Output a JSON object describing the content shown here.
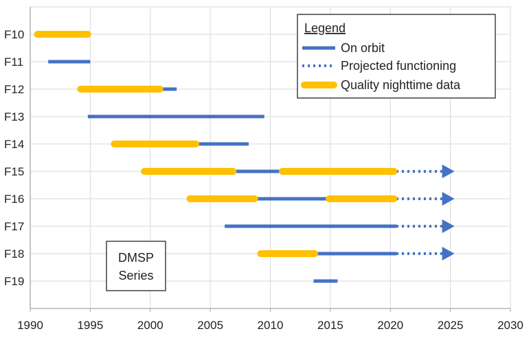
{
  "chart_data": {
    "type": "timeline",
    "title": "",
    "xlabel": "",
    "ylabel": "",
    "xlim": [
      1990,
      2030
    ],
    "x_ticks": [
      1990,
      1995,
      2000,
      2005,
      2010,
      2015,
      2020,
      2025,
      2030
    ],
    "categories": [
      "F10",
      "F11",
      "F12",
      "F13",
      "F14",
      "F15",
      "F16",
      "F17",
      "F18",
      "F19"
    ],
    "grid": true,
    "legend": {
      "title": "Legend",
      "placement": "top-right",
      "entries": [
        {
          "key": "on_orbit",
          "label": "On orbit"
        },
        {
          "key": "projected",
          "label": "Projected functioning"
        },
        {
          "key": "quality",
          "label": "Quality nighttime data"
        }
      ]
    },
    "annotation": {
      "lines": [
        "DMSP",
        "Series"
      ],
      "placement": "lower-left"
    },
    "colors": {
      "on_orbit": "#4472C4",
      "projected": "#4472C4",
      "quality": "#FFC000",
      "grid": "#d9d9d9",
      "axis": "#a6a6a6"
    },
    "series": [
      {
        "name": "On orbit",
        "key": "on_orbit",
        "intervals": [
          {
            "category": "F11",
            "start": 1991.5,
            "end": 1995.0
          },
          {
            "category": "F12",
            "start": 1994.2,
            "end": 2002.2
          },
          {
            "category": "F13",
            "start": 1994.8,
            "end": 2009.5
          },
          {
            "category": "F14",
            "start": 1997.0,
            "end": 2008.2
          },
          {
            "category": "F15",
            "start": 1999.5,
            "end": 2020.5
          },
          {
            "category": "F16",
            "start": 2003.3,
            "end": 2020.5
          },
          {
            "category": "F17",
            "start": 2006.2,
            "end": 2020.5
          },
          {
            "category": "F18",
            "start": 2009.2,
            "end": 2020.5
          },
          {
            "category": "F19",
            "start": 2013.6,
            "end": 2015.6
          }
        ]
      },
      {
        "name": "Projected functioning",
        "key": "projected",
        "intervals": [
          {
            "category": "F15",
            "start": 2020.5,
            "end": 2025.0
          },
          {
            "category": "F16",
            "start": 2020.5,
            "end": 2025.0
          },
          {
            "category": "F17",
            "start": 2020.5,
            "end": 2025.0
          },
          {
            "category": "F18",
            "start": 2020.5,
            "end": 2025.0
          }
        ]
      },
      {
        "name": "Quality nighttime data",
        "key": "quality",
        "intervals": [
          {
            "category": "F10",
            "start": 1990.6,
            "end": 1994.8
          },
          {
            "category": "F12",
            "start": 1994.2,
            "end": 2000.8
          },
          {
            "category": "F14",
            "start": 1997.0,
            "end": 2003.8
          },
          {
            "category": "F15",
            "start": 1999.5,
            "end": 2006.9
          },
          {
            "category": "F15",
            "start": 2011.0,
            "end": 2020.3
          },
          {
            "category": "F16",
            "start": 2003.3,
            "end": 2008.7
          },
          {
            "category": "F16",
            "start": 2014.9,
            "end": 2020.3
          },
          {
            "category": "F18",
            "start": 2009.2,
            "end": 2013.7
          }
        ]
      }
    ]
  }
}
